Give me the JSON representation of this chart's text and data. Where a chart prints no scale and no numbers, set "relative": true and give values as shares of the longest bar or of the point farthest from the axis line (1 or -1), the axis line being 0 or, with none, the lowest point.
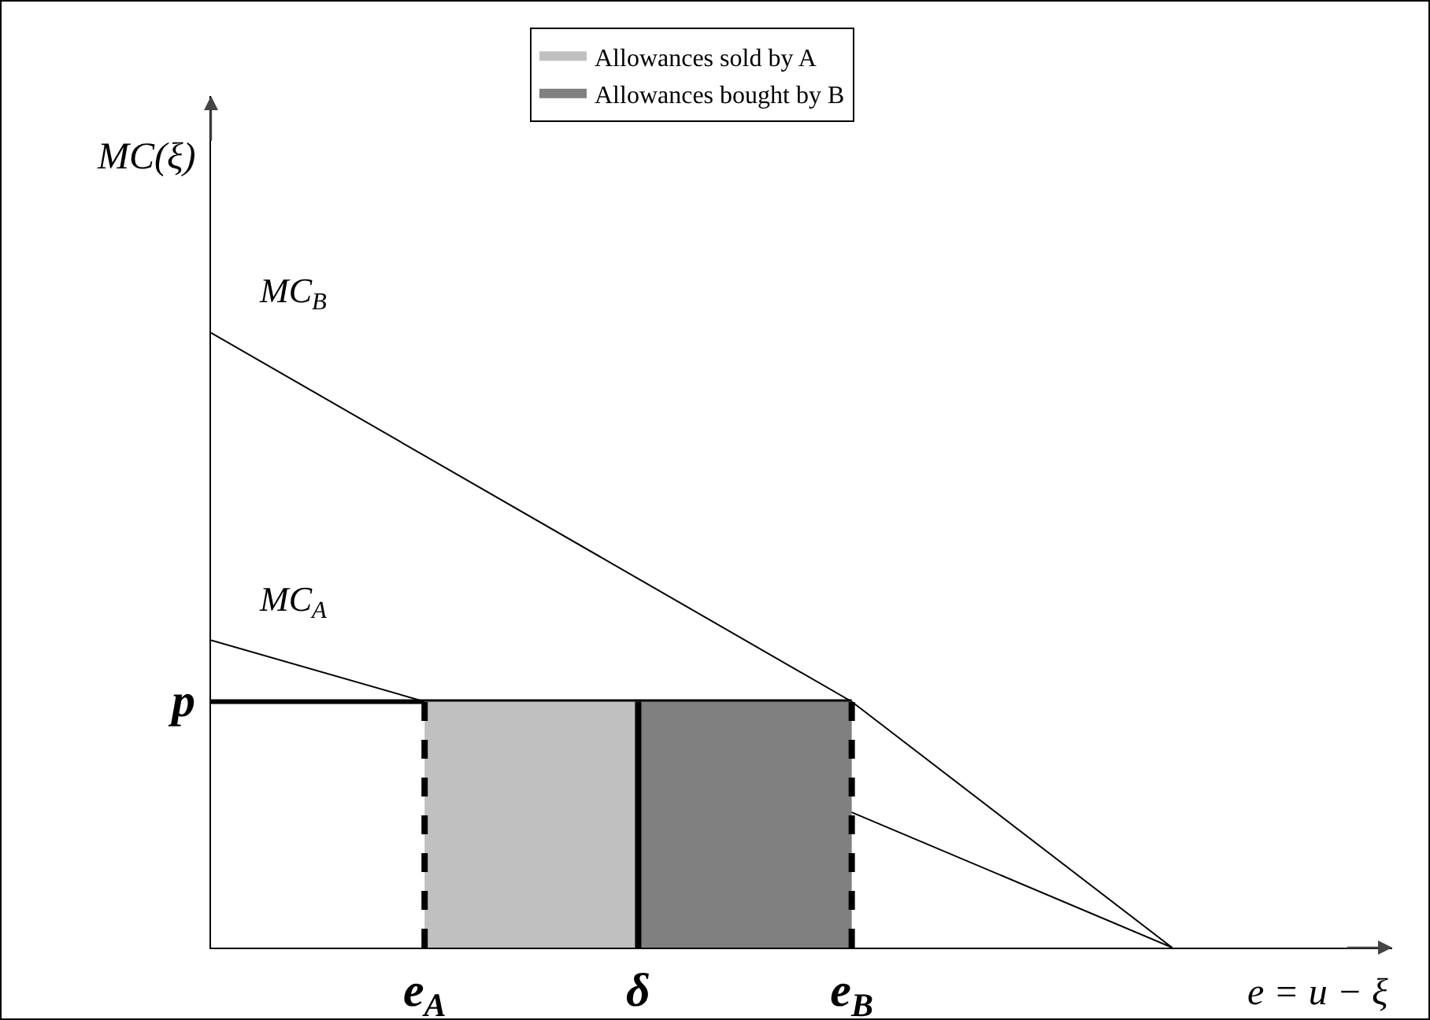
{
  "chart_data": {
    "type": "line",
    "relative": true,
    "xlabel": "e = u − ξ",
    "ylabel": "MC(ξ)",
    "legend": "top",
    "grid": false,
    "categories": [
      null,
      null,
      "e$_{A}$",
      null,
      "δ",
      null,
      "e$_{B}$",
      null,
      null,
      null
    ],
    "series": [
      {
        "name": "MC$_{B}$",
        "color": "#000000",
        "values": [
          1,
          null,
          null,
          null,
          null,
          null,
          0.4,
          null,
          null,
          0
        ]
      },
      {
        "name": "MC$_{A}$",
        "color": "#000000",
        "values": [
          0.5,
          null,
          0.4,
          null,
          null,
          null,
          0.22,
          null,
          null,
          0
        ]
      },
      {
        "name": "p",
        "color": "#000000",
        "values": [
          0.4,
          null,
          null,
          null,
          null,
          null,
          0.4,
          null,
          null,
          null
        ]
      },
      {
        "name": "Allowances sold by A",
        "type": "area",
        "color": "#c0c0c0",
        "values": [
          null,
          null,
          0.4,
          null,
          0.4,
          null,
          null,
          null,
          null,
          null
        ]
      },
      {
        "name": "Allowances bought by B",
        "type": "area",
        "color": "#808080",
        "values": [
          null,
          null,
          null,
          null,
          0.4,
          null,
          0.4,
          null,
          null,
          null
        ]
      }
    ],
    "ref_lines": [
      {
        "axis": "x",
        "value": "e$_{A}$",
        "line_style": "dashed"
      },
      {
        "axis": "x",
        "value": "δ",
        "line_style": "solid"
      },
      {
        "axis": "x",
        "value": "e$_{B}$",
        "line_style": "dashed"
      }
    ]
  }
}
